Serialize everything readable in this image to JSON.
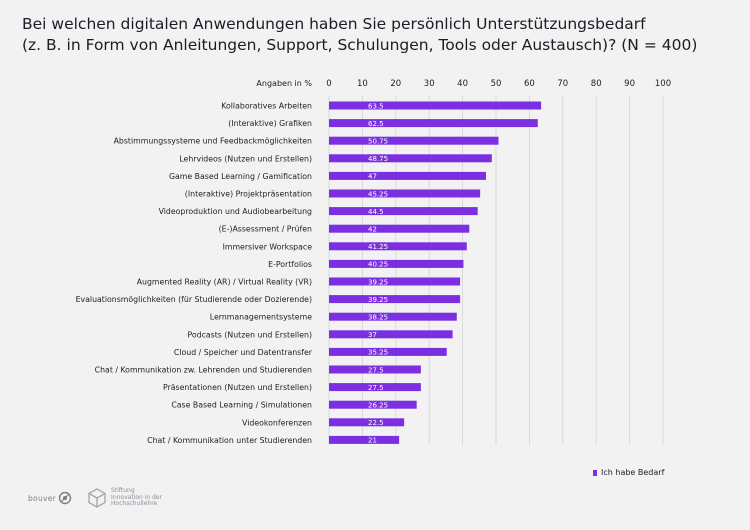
{
  "title_line1": "Bei welchen digitalen Anwendungen haben Sie persönlich Unterstützungsbedarf",
  "title_line2": "(z. B. in Form von Anleitungen, Support, Schulungen, Tools oder Austausch)? (N = 400)",
  "legend_label": "Ich habe Bedarf",
  "logos": {
    "logo1_text": "bouver",
    "logo2_line1": "Stiftung",
    "logo2_line2": "Innovation in der",
    "logo2_line3": "Hochschullehre"
  },
  "colors": {
    "bar": "#7b2fe0",
    "grid": "#d4d4d8",
    "background": "#f2f2f2"
  },
  "chart_data": {
    "type": "bar",
    "orientation": "horizontal",
    "axis_label": "Angaben in %",
    "xlim": [
      0,
      100
    ],
    "ticks": [
      0,
      10,
      20,
      30,
      40,
      50,
      60,
      70,
      80,
      90,
      100
    ],
    "series": [
      {
        "name": "Ich habe Bedarf"
      }
    ],
    "categories": [
      "Kollaboratives Arbeiten",
      "(Interaktive) Grafiken",
      "Abstimmungssysteme und Feedbackmöglichkeiten",
      "Lehrvideos (Nutzen und Erstellen)",
      "Game Based Learning / Gamification",
      "(Interaktive) Projektpräsentation",
      "Videoproduktion und Audiobearbeitung",
      "(E-)Assessment / Prüfen",
      "Immersiver Workspace",
      "E-Portfolios",
      "Augmented Reality (AR) / Virtual Reality (VR)",
      "Evaluationsmöglichkeiten (für Studierende oder Dozierende)",
      "Lernmanagementsysteme",
      "Podcasts (Nutzen und Erstellen)",
      "Cloud / Speicher und Datentransfer",
      "Chat / Kommunikation zw. Lehrenden und Studierenden",
      "Präsentationen (Nutzen und Erstellen)",
      "Case Based Learning / Simulationen",
      "Videokonferenzen",
      "Chat / Kommunikation unter Studierenden"
    ],
    "values": [
      63.5,
      62.5,
      50.75,
      48.75,
      47,
      45.25,
      44.5,
      42,
      41.25,
      40.25,
      39.25,
      39.25,
      38.25,
      37,
      35.25,
      27.5,
      27.5,
      26.25,
      22.5,
      21
    ],
    "value_labels": [
      "63.5",
      "62.5",
      "50.75",
      "48.75",
      "47",
      "45.25",
      "44.5",
      "42",
      "41.25",
      "40.25",
      "39.25",
      "39.25",
      "38.25",
      "37",
      "35.25",
      "27.5",
      "27.5",
      "26.25",
      "22.5",
      "21"
    ],
    "legend_position": "bottom-right",
    "grid": true
  }
}
